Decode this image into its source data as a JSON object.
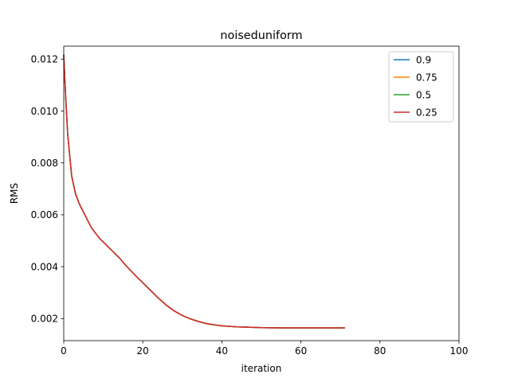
{
  "chart_data": {
    "type": "line",
    "title": "noiseduniform",
    "xlabel": "iteration",
    "ylabel": "RMS",
    "xlim": [
      0,
      100
    ],
    "ylim": [
      0.00115,
      0.0125
    ],
    "xticks": [
      0,
      20,
      40,
      60,
      80,
      100
    ],
    "xtick_labels": [
      "0",
      "20",
      "40",
      "60",
      "80",
      "100"
    ],
    "yticks": [
      0.002,
      0.004,
      0.006,
      0.008,
      0.01,
      0.012
    ],
    "ytick_labels": [
      "0.002",
      "0.004",
      "0.006",
      "0.008",
      "0.010",
      "0.012"
    ],
    "grid": false,
    "legend_position": "top-right",
    "x": [
      0,
      0.5,
      1,
      2,
      3,
      4,
      5,
      6,
      7,
      8,
      9,
      10,
      12,
      14,
      16,
      18,
      20,
      22,
      24,
      26,
      28,
      30,
      32,
      34,
      36,
      38,
      40,
      42,
      44,
      46,
      48,
      50,
      55,
      60,
      65,
      71
    ],
    "series": [
      {
        "name": "0.9",
        "color": "#1f77b4",
        "values": [
          0.01215,
          0.0105,
          0.0091,
          0.0075,
          0.0068,
          0.0064,
          0.0061,
          0.0058,
          0.0055,
          0.0053,
          0.0051,
          0.00495,
          0.00465,
          0.00435,
          0.004,
          0.00368,
          0.00338,
          0.00308,
          0.00278,
          0.00251,
          0.00229,
          0.00212,
          0.00199,
          0.00189,
          0.00181,
          0.00176,
          0.00172,
          0.0017,
          0.00168,
          0.00167,
          0.00166,
          0.00165,
          0.00164,
          0.00164,
          0.00164,
          0.00164
        ]
      },
      {
        "name": "0.75",
        "color": "#ff7f0e",
        "values": [
          0.01215,
          0.0105,
          0.0091,
          0.0075,
          0.0068,
          0.0064,
          0.0061,
          0.0058,
          0.0055,
          0.0053,
          0.0051,
          0.00495,
          0.00465,
          0.00435,
          0.004,
          0.00368,
          0.00338,
          0.00308,
          0.00278,
          0.00251,
          0.00229,
          0.00212,
          0.00199,
          0.00189,
          0.00181,
          0.00176,
          0.00172,
          0.0017,
          0.00168,
          0.00167,
          0.00166,
          0.00165,
          0.00164,
          0.00164,
          0.00164,
          0.00164
        ]
      },
      {
        "name": "0.5",
        "color": "#2ca02c",
        "values": [
          0.01215,
          0.0105,
          0.0091,
          0.0075,
          0.0068,
          0.0064,
          0.0061,
          0.0058,
          0.0055,
          0.0053,
          0.0051,
          0.00495,
          0.00465,
          0.00435,
          0.004,
          0.00368,
          0.00338,
          0.00308,
          0.00278,
          0.00251,
          0.00229,
          0.00212,
          0.00199,
          0.00189,
          0.00181,
          0.00176,
          0.00172,
          0.0017,
          0.00168,
          0.00167,
          0.00166,
          0.00165,
          0.00164,
          0.00164,
          0.00164,
          0.00164
        ]
      },
      {
        "name": "0.25",
        "color": "#d62728",
        "values": [
          0.01215,
          0.0105,
          0.0091,
          0.0075,
          0.0068,
          0.0064,
          0.0061,
          0.0058,
          0.0055,
          0.0053,
          0.0051,
          0.00495,
          0.00465,
          0.00435,
          0.004,
          0.00368,
          0.00338,
          0.00308,
          0.00278,
          0.00251,
          0.00229,
          0.00212,
          0.00199,
          0.00189,
          0.00181,
          0.00176,
          0.00172,
          0.0017,
          0.00168,
          0.00167,
          0.00166,
          0.00165,
          0.00164,
          0.00164,
          0.00164,
          0.00164
        ]
      }
    ]
  }
}
